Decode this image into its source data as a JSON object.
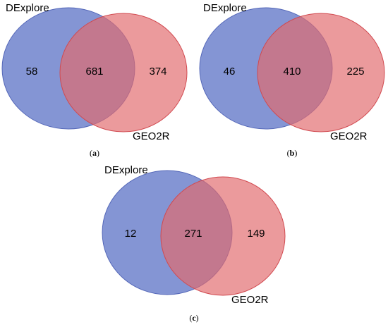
{
  "colors": {
    "set_a_fill": "#6f82cc",
    "set_a_stroke": "#5467b8",
    "set_b_fill": "#e26a6d",
    "set_b_stroke": "#d14a50",
    "background": "#ffffff"
  },
  "panels": [
    {
      "caption_prefix": "(",
      "caption_letter": "a",
      "caption_suffix": ")",
      "set_a_label": "DExplore",
      "set_b_label": "GEO2R",
      "only_a": "58",
      "both": "681",
      "only_b": "374"
    },
    {
      "caption_prefix": "(",
      "caption_letter": "b",
      "caption_suffix": ")",
      "set_a_label": "DExplore",
      "set_b_label": "GEO2R",
      "only_a": "46",
      "both": "410",
      "only_b": "225"
    },
    {
      "caption_prefix": "(",
      "caption_letter": "c",
      "caption_suffix": ")",
      "set_a_label": "DExplore",
      "set_b_label": "GEO2R",
      "only_a": "12",
      "both": "271",
      "only_b": "149"
    }
  ]
}
